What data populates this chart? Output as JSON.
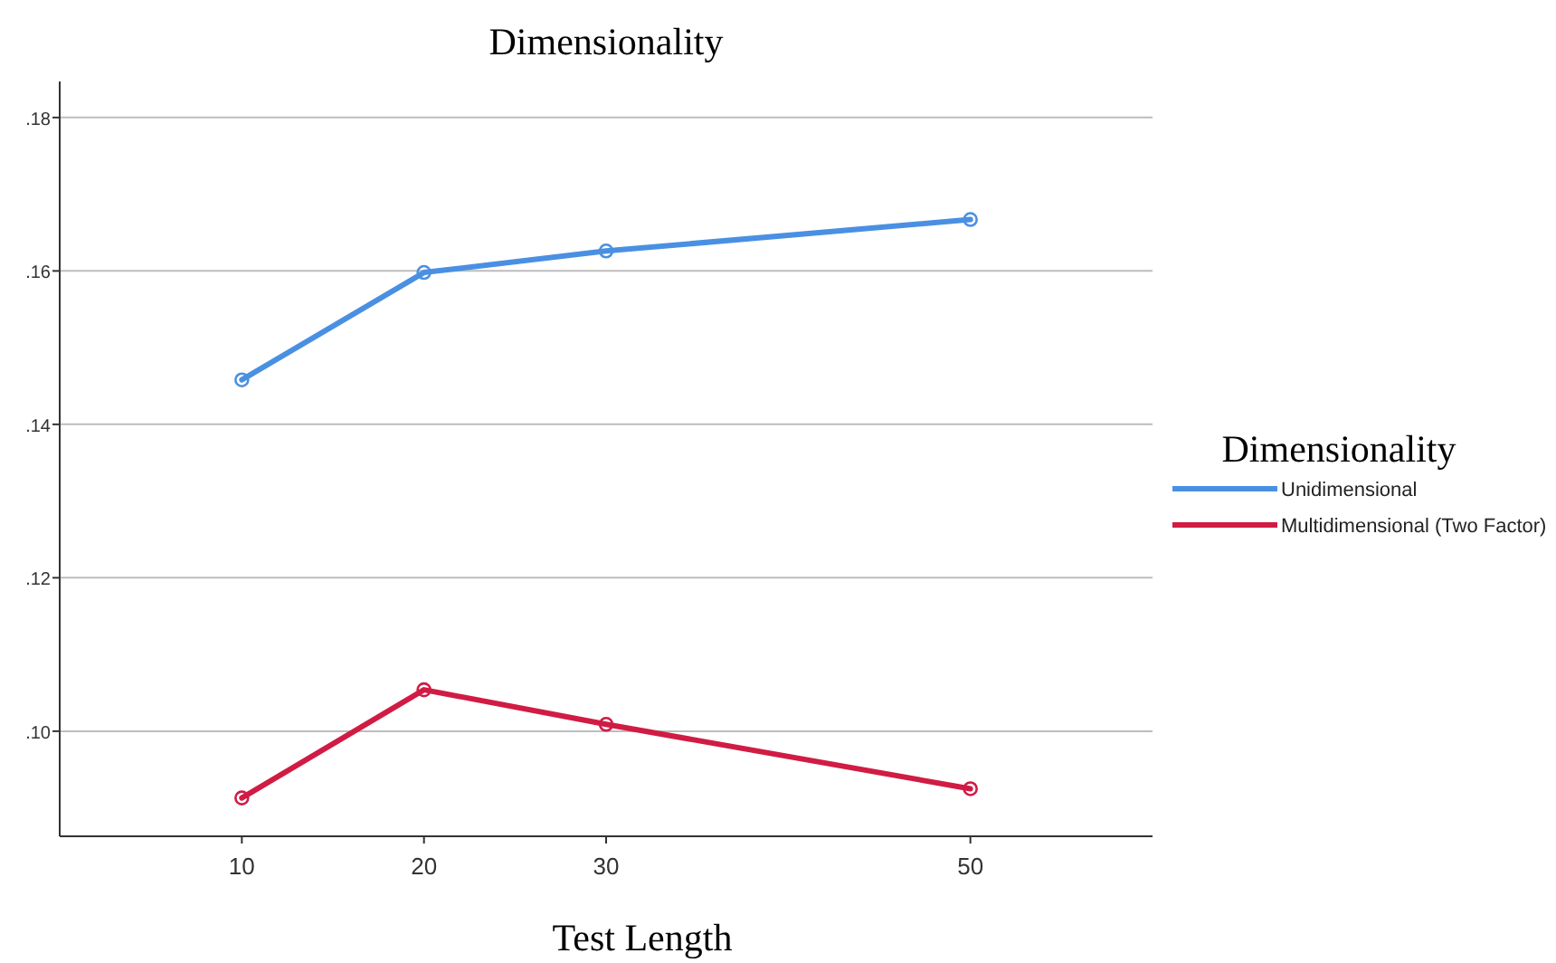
{
  "chart_data": {
    "type": "line",
    "title": "Dimensionality",
    "xlabel": "Test Length",
    "legend_title": "Dimensionality",
    "x": [
      10,
      20,
      30,
      50
    ],
    "xlim": [
      0,
      60
    ],
    "xticks": [
      10,
      20,
      30,
      50
    ],
    "ylim": [
      0.0863,
      0.1847
    ],
    "yticks": [
      {
        "value": 0.1,
        "label": ".10"
      },
      {
        "value": 0.12,
        "label": ".12"
      },
      {
        "value": 0.14,
        "label": ".14"
      },
      {
        "value": 0.16,
        "label": ".16"
      },
      {
        "value": 0.18,
        "label": ".18"
      }
    ],
    "grid": "y",
    "legend": "right",
    "marker": "circle",
    "line_style": "solid",
    "series": [
      {
        "name": "Unidimensional",
        "color": "#4a90e2",
        "values": [
          0.1458,
          0.1598,
          0.1626,
          0.1667
        ]
      },
      {
        "name": "Multidimensional (Two Factor)",
        "color": "#d01c44",
        "values": [
          0.0913,
          0.1054,
          0.1009,
          0.0925
        ]
      }
    ]
  }
}
